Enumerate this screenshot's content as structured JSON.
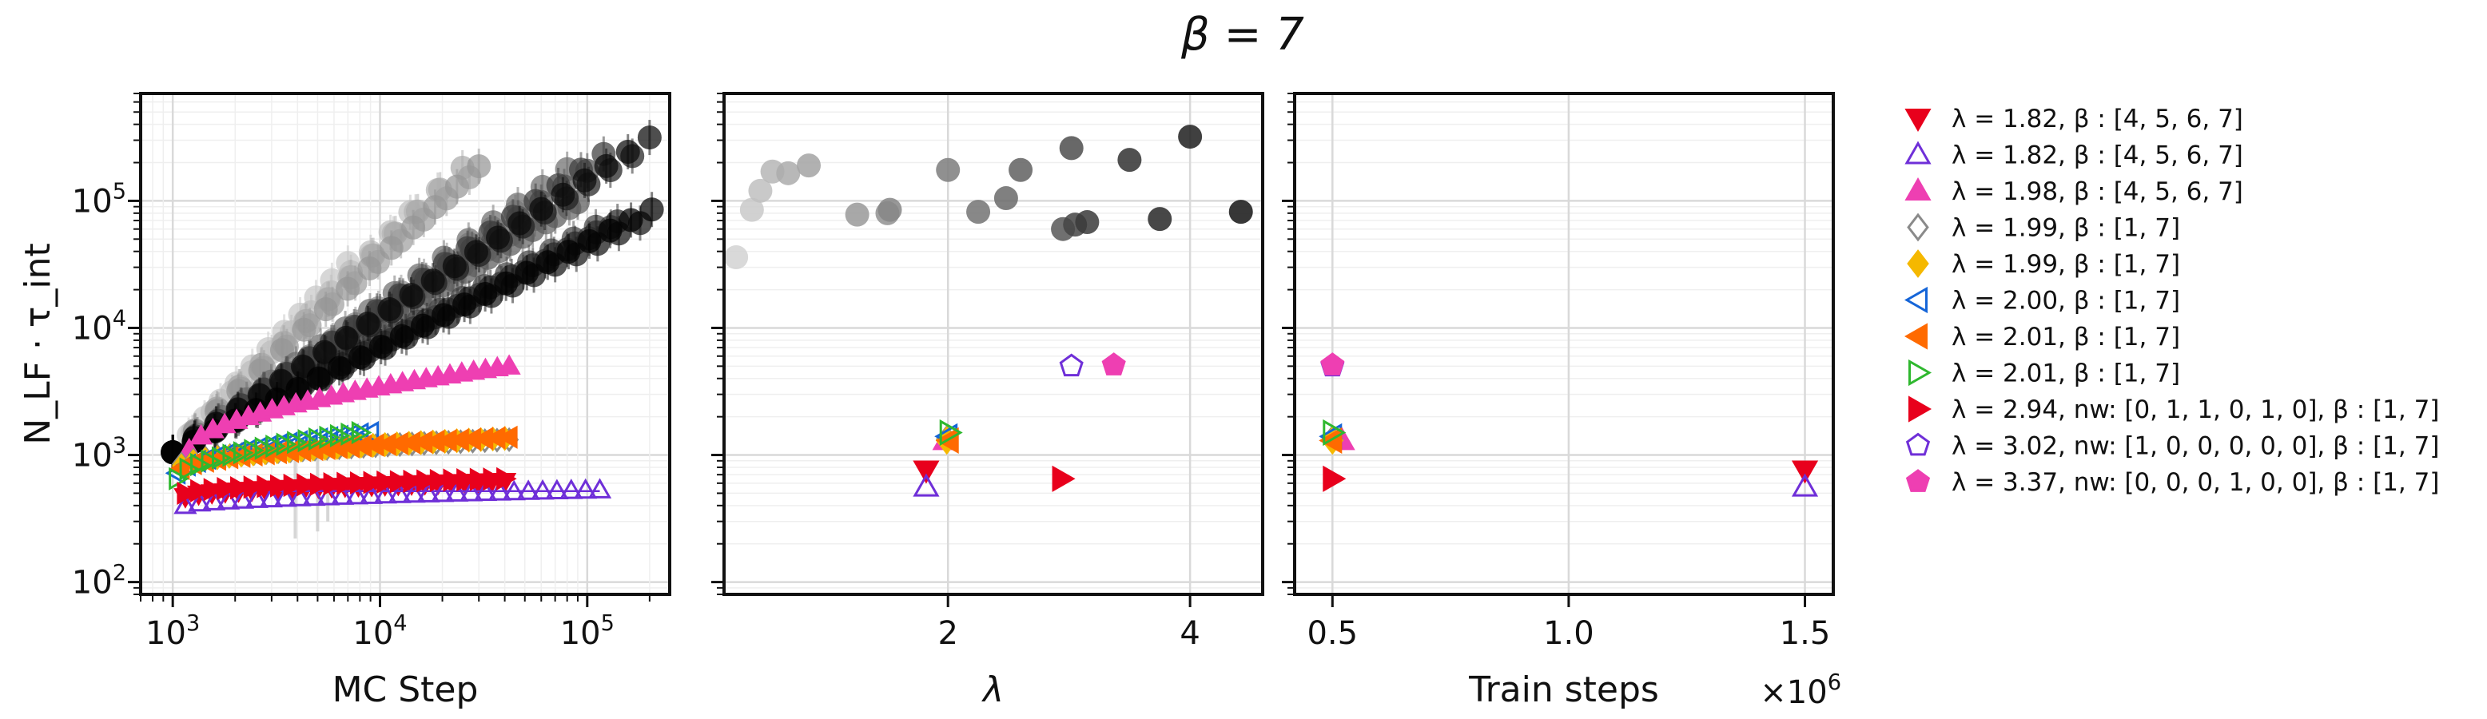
{
  "chart_data": {
    "type": "scatter",
    "title": "β = 7",
    "panels": [
      {
        "id": "mc",
        "xlabel": "MC Step",
        "ylabel": "N_LF · τ_int",
        "x_scale": "log",
        "y_scale": "log",
        "xlim": [
          700,
          250000
        ],
        "ylim": [
          80,
          700000
        ],
        "x_ticks": [
          {
            "v": 1000,
            "b": "10",
            "e": "3"
          },
          {
            "v": 10000,
            "b": "10",
            "e": "4"
          },
          {
            "v": 100000,
            "b": "10",
            "e": "5"
          }
        ],
        "y_ticks": [
          {
            "v": 100,
            "b": "10",
            "e": "2"
          },
          {
            "v": 1000,
            "b": "10",
            "e": "3"
          },
          {
            "v": 10000,
            "b": "10",
            "e": "4"
          },
          {
            "v": 100000,
            "b": "10",
            "e": "5"
          }
        ]
      },
      {
        "id": "lambda",
        "xlabel": "λ",
        "x_scale": "linear",
        "y_scale": "log",
        "xlim": [
          0.15,
          4.6
        ],
        "ylim": [
          80,
          700000
        ],
        "x_ticks": [
          {
            "v": 2,
            "t": "2"
          },
          {
            "v": 4,
            "t": "4"
          }
        ]
      },
      {
        "id": "train",
        "xlabel": "Train steps",
        "x_scale": "linear",
        "y_scale": "log",
        "xlim": [
          420000,
          1560000
        ],
        "ylim": [
          80,
          700000
        ],
        "x_ticks": [
          {
            "v": 500000,
            "t": "0.5"
          },
          {
            "v": 1000000,
            "t": "1.0"
          },
          {
            "v": 1500000,
            "t": "1.5"
          }
        ],
        "x_offset_label": {
          "b": "×10",
          "e": "6"
        }
      }
    ],
    "series": [
      {
        "name": "λ = 1.82, β : [4, 5, 6, 7]",
        "color": "#e8001c",
        "marker": "triangle-down",
        "filled": true,
        "mc": {
          "x_start": 1150,
          "x_end": 40000,
          "y_start": 470,
          "y_end": 620,
          "n": 25
        },
        "lambda": 1.82,
        "train": 1500000,
        "y_point": 760
      },
      {
        "name": "λ = 1.82, β : [4, 5, 6, 7]",
        "color": "#6f2fd8",
        "marker": "triangle-up",
        "filled": false,
        "mc": {
          "x_start": 1150,
          "x_end": 115000,
          "y_start": 400,
          "y_end": 530,
          "n": 30
        },
        "lambda": 1.82,
        "train": 1500000,
        "y_point": 560
      },
      {
        "name": "λ = 1.98, β : [4, 5, 6, 7]",
        "color": "#ee3fb2",
        "marker": "triangle-up",
        "filled": true,
        "mc": {
          "x_start": 1200,
          "x_end": 42000,
          "y_start": 1100,
          "y_end": 5000,
          "n": 28
        },
        "lambda": 1.98,
        "train": 520000,
        "y_point": 1300
      },
      {
        "name": "λ = 1.99, β : [1, 7]",
        "color": "#8a8a8a",
        "marker": "diamond",
        "filled": false,
        "mc": {
          "x_start": 1100,
          "x_end": 42000,
          "y_start": 850,
          "y_end": 1320,
          "n": 28
        },
        "lambda": 1.99,
        "train": 500000,
        "y_point": 1330
      },
      {
        "name": "λ = 1.99, β : [1, 7]",
        "color": "#f5b800",
        "marker": "diamond",
        "filled": true,
        "mc": {
          "x_start": 1100,
          "x_end": 40000,
          "y_start": 820,
          "y_end": 1350,
          "n": 28
        },
        "lambda": 1.99,
        "train": 500000,
        "y_point": 1300
      },
      {
        "name": "λ = 2.00, β : [1, 7]",
        "color": "#1565d8",
        "marker": "triangle-left",
        "filled": false,
        "mc": {
          "x_start": 1050,
          "x_end": 9000,
          "y_start": 720,
          "y_end": 1500,
          "n": 20
        },
        "lambda": 2.0,
        "train": 500000,
        "y_point": 1400
      },
      {
        "name": "λ = 2.01, β : [1, 7]",
        "color": "#ff6a00",
        "marker": "triangle-left",
        "filled": true,
        "mc": {
          "x_start": 1100,
          "x_end": 42000,
          "y_start": 780,
          "y_end": 1380,
          "n": 28
        },
        "lambda": 2.01,
        "train": 500000,
        "y_point": 1300
      },
      {
        "name": "λ = 2.01, β : [1, 7]",
        "color": "#2fb82f",
        "marker": "triangle-right",
        "filled": false,
        "mc": {
          "x_start": 1050,
          "x_end": 8000,
          "y_start": 650,
          "y_end": 1500,
          "n": 18
        },
        "lambda": 2.01,
        "train": 500000,
        "y_point": 1500
      },
      {
        "name": "λ = 2.94, nw: [0, 1, 1, 0, 1, 0], β : [1, 7]",
        "color": "#e8001c",
        "marker": "triangle-right",
        "filled": true,
        "mc": {
          "x_start": 1150,
          "x_end": 40000,
          "y_start": 500,
          "y_end": 650,
          "n": 25
        },
        "lambda": 2.94,
        "train": 500000,
        "y_point": 650
      },
      {
        "name": "λ = 3.02, nw: [1, 0, 0, 0, 0, 0], β : [1, 7]",
        "color": "#6f2fd8",
        "marker": "pentagon",
        "filled": false,
        "mc": null,
        "lambda": 3.02,
        "train": 500000,
        "y_point": 5000
      },
      {
        "name": "λ = 3.37, nw: [0, 0, 0, 1, 0, 0], β : [1, 7]",
        "color": "#ee3fb2",
        "marker": "pentagon",
        "filled": true,
        "mc": null,
        "lambda": 3.37,
        "train": 500000,
        "y_point": 5100
      }
    ],
    "gray_runs": {
      "lambda": [
        0.25,
        0.38,
        0.45,
        0.55,
        0.68,
        0.85,
        1.25,
        1.5,
        1.52,
        2.0,
        2.25,
        2.48,
        2.6,
        2.95,
        3.02,
        3.05,
        3.15,
        3.5,
        3.75,
        4.0,
        4.42
      ],
      "y_point": [
        36000,
        85000,
        120000,
        170000,
        165000,
        190000,
        78000,
        80000,
        85000,
        175000,
        82000,
        105000,
        175000,
        60000,
        260000,
        65000,
        68000,
        210000,
        72000,
        320000,
        82000
      ],
      "x_end": [
        7000,
        14000,
        19000,
        25000,
        27000,
        30000,
        45000,
        56000,
        58000,
        80000,
        82000,
        90000,
        100000,
        110000,
        120000,
        130000,
        140000,
        165000,
        180000,
        200000,
        205000
      ]
    }
  }
}
